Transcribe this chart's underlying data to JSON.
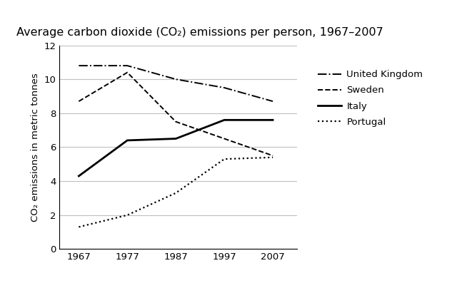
{
  "title": "Average carbon dioxide (CO₂) emissions per person, 1967–2007",
  "ylabel": "CO₂ emissions in metric tonnes",
  "years": [
    1967,
    1977,
    1987,
    1997,
    2007
  ],
  "series": {
    "United Kingdom": [
      10.8,
      10.8,
      10.0,
      9.5,
      8.7
    ],
    "Sweden": [
      8.7,
      10.4,
      7.5,
      6.5,
      5.5
    ],
    "Italy": [
      4.3,
      6.4,
      6.5,
      7.6,
      7.6
    ],
    "Portugal": [
      1.3,
      2.0,
      3.3,
      5.3,
      5.4
    ]
  },
  "styles": {
    "United Kingdom": {
      "linestyle": "-.",
      "color": "black",
      "linewidth": 1.4
    },
    "Sweden": {
      "linestyle": "--",
      "color": "black",
      "linewidth": 1.4
    },
    "Italy": {
      "linestyle": "-",
      "color": "black",
      "linewidth": 2.0
    },
    "Portugal": {
      "linestyle": ":",
      "color": "black",
      "linewidth": 1.6
    }
  },
  "ylim": [
    0,
    12
  ],
  "yticks": [
    0,
    2,
    4,
    6,
    8,
    10,
    12
  ],
  "xlim": [
    1963,
    2012
  ],
  "xticks": [
    1967,
    1977,
    1987,
    1997,
    2007
  ],
  "legend_order": [
    "United Kingdom",
    "Sweden",
    "Italy",
    "Portugal"
  ],
  "background_color": "#ffffff",
  "grid_color": "#c0c0c0",
  "title_fontsize": 11.5,
  "label_fontsize": 9.5,
  "tick_fontsize": 9.5,
  "legend_fontsize": 9.5
}
